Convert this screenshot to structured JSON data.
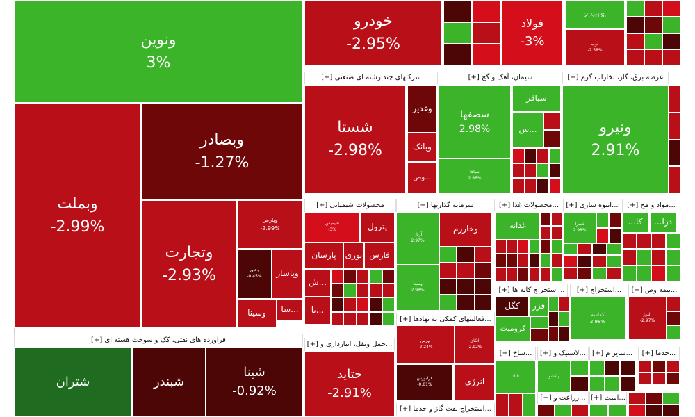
{
  "colors": {
    "bright_green": "#3cb42a",
    "dark_green": "#1f6b1f",
    "bright_red": "#d40f1b",
    "red": "#b90f18",
    "dark_red": "#6e0808",
    "maroon": "#4c0606"
  },
  "chart_data": {
    "type": "treemap",
    "title": "",
    "groups": [
      {
        "label": "[+] فراورده های نفتی، کک و سوخت هسته ای"
      },
      {
        "label": "[+] شرکتهای چند رشته ای صنعتی"
      },
      {
        "label": "[+] سیمان، آهک و گچ"
      },
      {
        "label": "[+] عرضه برق، گاز، بخاراب گرم"
      },
      {
        "label": "[+] محصولات شیمیایی"
      },
      {
        "label": "[+] سرمایه گذاریها"
      },
      {
        "label": "[+] محصولات غذا..."
      },
      {
        "label": "[+] انبوه سازی..."
      },
      {
        "label": "[+] مواد و مح..."
      },
      {
        "label": "[+] استخراج کانه ها..."
      },
      {
        "label": "[+] استخراج..."
      },
      {
        "label": "[+] بیمه وص..."
      },
      {
        "label": "[+] فعالیتهای کمکی به نهادها..."
      },
      {
        "label": "[+] حمل ونقل، انبارداری و..."
      },
      {
        "label": "[+] ساخ..."
      },
      {
        "label": "[+] لاستیک و..."
      },
      {
        "label": "[+] سایر م..."
      },
      {
        "label": "[+] خدما..."
      },
      {
        "label": "[+] زراعت و..."
      },
      {
        "label": "[+] است..."
      },
      {
        "label": "[+] استخراج نفت گاز و خدما..."
      }
    ],
    "tiles": [
      {
        "name": "ونوین",
        "change": "3%",
        "color": "bright_green"
      },
      {
        "name": "وبملت",
        "change": "-2.99%",
        "color": "red"
      },
      {
        "name": "وبصادر",
        "change": "-1.27%",
        "color": "dark_red"
      },
      {
        "name": "وتجارت",
        "change": "-2.93%",
        "color": "red"
      },
      {
        "name": "وپارس",
        "change": "-2.99%",
        "color": "red"
      },
      {
        "name": "وخاور",
        "change": "-0.45%",
        "color": "maroon"
      },
      {
        "name": "وپاسار",
        "change": "",
        "color": "red"
      },
      {
        "name": "وسینا",
        "change": "",
        "color": "red"
      },
      {
        "name": "سا...",
        "change": "",
        "color": "red"
      },
      {
        "name": "شتران",
        "change": "",
        "color": "dark_green"
      },
      {
        "name": "شبندر",
        "change": "",
        "color": "maroon"
      },
      {
        "name": "شپنا",
        "change": "-0.92%",
        "color": "maroon"
      },
      {
        "name": "خودرو",
        "change": "-2.95%",
        "color": "red"
      },
      {
        "name": "فولاد",
        "change": "-3%",
        "color": "bright_red"
      },
      {
        "name": "",
        "change": "2.98%",
        "color": "bright_green"
      },
      {
        "name": "ذوب",
        "change": "-2.58%",
        "color": "red"
      },
      {
        "name": "شستا",
        "change": "-2.98%",
        "color": "red"
      },
      {
        "name": "وغدير",
        "change": "",
        "color": "dark_red"
      },
      {
        "name": "وبانک",
        "change": "",
        "color": "red"
      },
      {
        "name": "وص...",
        "change": "",
        "color": "red"
      },
      {
        "name": "سصفها",
        "change": "2.98%",
        "color": "bright_green"
      },
      {
        "name": "سباقر",
        "change": "",
        "color": "bright_green"
      },
      {
        "name": "س...",
        "change": "",
        "color": "bright_green"
      },
      {
        "name": "سپاها",
        "change": "2.96%",
        "color": "bright_green"
      },
      {
        "name": "ونیرو",
        "change": "2.91%",
        "color": "bright_green"
      },
      {
        "name": "شیمیس",
        "change": "-3%",
        "color": "bright_red"
      },
      {
        "name": "پترول",
        "change": "",
        "color": "red"
      },
      {
        "name": "نوری",
        "change": "",
        "color": "red"
      },
      {
        "name": "پارسان",
        "change": "",
        "color": "red"
      },
      {
        "name": "فارس",
        "change": "",
        "color": "red"
      },
      {
        "name": "ش...",
        "change": "",
        "color": "red"
      },
      {
        "name": "تا...",
        "change": "",
        "color": "red"
      },
      {
        "name": "آریان",
        "change": "2.97%",
        "color": "bright_green"
      },
      {
        "name": "وخارزم",
        "change": "",
        "color": "red"
      },
      {
        "name": "وسینا",
        "change": "2.98%",
        "color": "bright_green"
      },
      {
        "name": "غدانه",
        "change": "",
        "color": "bright_green"
      },
      {
        "name": "ثعمرا",
        "change": "2.98%",
        "color": "bright_green"
      },
      {
        "name": "...کا",
        "change": "",
        "color": "bright_green"
      },
      {
        "name": "...دزا",
        "change": "",
        "color": "bright_green"
      },
      {
        "name": "کگل",
        "change": "",
        "color": "maroon"
      },
      {
        "name": "فزر",
        "change": "",
        "color": "bright_green"
      },
      {
        "name": "کرومیت",
        "change": "",
        "color": "bright_green"
      },
      {
        "name": "کماسه",
        "change": "2.98%",
        "color": "bright_green"
      },
      {
        "name": "البرز",
        "change": "-2.97%",
        "color": "red"
      },
      {
        "name": "بورس",
        "change": "-2.24%",
        "color": "red"
      },
      {
        "name": "اتکای",
        "change": "-2.92%",
        "color": "red"
      },
      {
        "name": "فرابورس",
        "change": "-0.81%",
        "color": "maroon"
      },
      {
        "name": "انرژی",
        "change": "",
        "color": "red"
      },
      {
        "name": "حتاید",
        "change": "-2.91%",
        "color": "red"
      },
      {
        "name": "ثاباد",
        "change": "",
        "color": "bright_green"
      },
      {
        "name": "پاکشو",
        "change": "",
        "color": "bright_green"
      }
    ]
  }
}
